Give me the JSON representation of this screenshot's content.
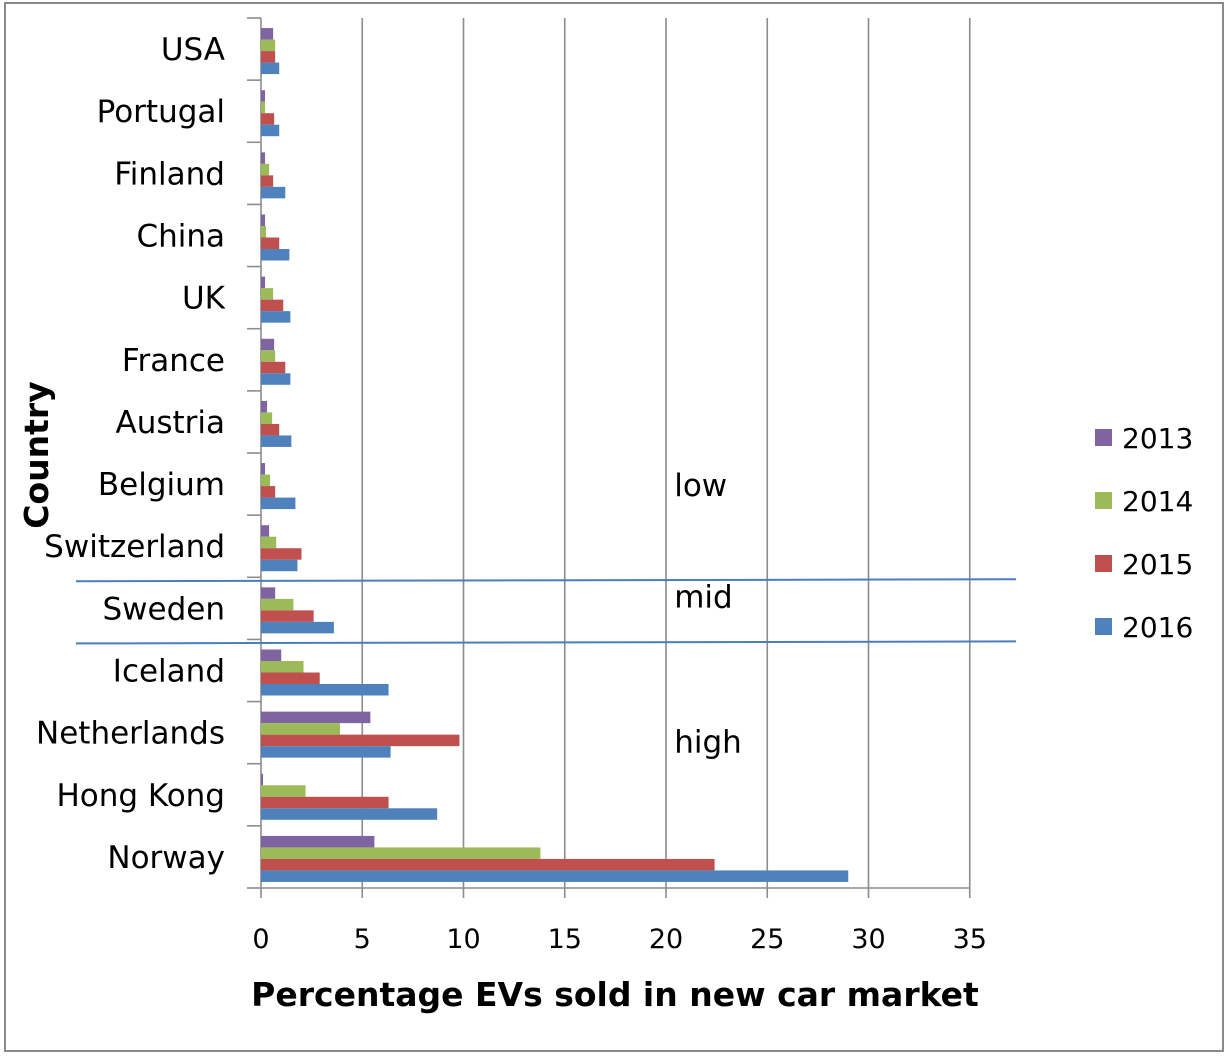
{
  "chart_data": {
    "type": "bar",
    "orientation": "horizontal",
    "title": "",
    "xlabel": "Percentage EVs sold in new car market",
    "ylabel": "Country",
    "xlim": [
      0,
      35
    ],
    "xticks": [
      0,
      5,
      10,
      15,
      20,
      25,
      30,
      35
    ],
    "grid": "vertical",
    "legend_position": "right",
    "categories": [
      "Norway",
      "Hong Kong",
      "Netherlands",
      "Iceland",
      "Sweden",
      "Switzerland",
      "Belgium",
      "Austria",
      "France",
      "UK",
      "China",
      "Finland",
      "Portugal",
      "USA"
    ],
    "series": [
      {
        "name": "2013",
        "color": "#8064a2",
        "values": [
          5.6,
          0.1,
          5.4,
          1.0,
          0.7,
          0.4,
          0.2,
          0.3,
          0.65,
          0.2,
          0.2,
          0.2,
          0.2,
          0.6
        ]
      },
      {
        "name": "2014",
        "color": "#9bbb59",
        "values": [
          13.8,
          2.2,
          3.9,
          2.1,
          1.6,
          0.75,
          0.45,
          0.55,
          0.7,
          0.6,
          0.25,
          0.4,
          0.2,
          0.7
        ]
      },
      {
        "name": "2015",
        "color": "#c0504d",
        "values": [
          22.4,
          6.3,
          9.8,
          2.9,
          2.6,
          2.0,
          0.7,
          0.9,
          1.2,
          1.1,
          0.9,
          0.6,
          0.65,
          0.7
        ]
      },
      {
        "name": "2016",
        "color": "#4f81bd",
        "values": [
          29.0,
          8.7,
          6.4,
          6.3,
          3.6,
          1.8,
          1.7,
          1.5,
          1.45,
          1.45,
          1.4,
          1.2,
          0.9,
          0.9
        ]
      }
    ],
    "annotations": [
      {
        "text": "low",
        "x": 20.9,
        "category": "Belgium"
      },
      {
        "text": "mid",
        "x": 20.9,
        "category": "Sweden"
      },
      {
        "text": "high",
        "x": 20.9,
        "category": "Netherlands"
      }
    ],
    "divider_lines": [
      {
        "between": [
          "Sweden",
          "Switzerland"
        ]
      },
      {
        "between": [
          "Iceland",
          "Sweden"
        ]
      }
    ],
    "line_color": "#4a7ebb",
    "grid_color": "#8c8c8c"
  }
}
